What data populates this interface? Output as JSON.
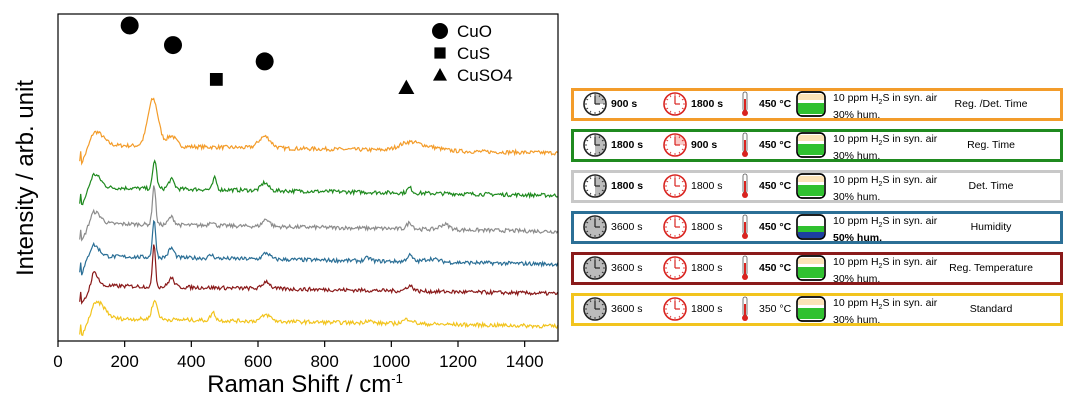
{
  "chart_data": {
    "type": "line",
    "xlabel": "Raman Shift / cm",
    "xlabel_sup": "-1",
    "ylabel": "Intensity / arb. unit",
    "xlim": [
      0,
      1500
    ],
    "xticks": [
      "0",
      "200",
      "400",
      "600",
      "800",
      "1000",
      "1200",
      "1400"
    ],
    "x_tick_values": [
      0,
      200,
      400,
      600,
      800,
      1000,
      1200,
      1400
    ],
    "yticks_shown": false,
    "series": [
      {
        "color": "#f39c2a",
        "start": 65,
        "offset": 0.6,
        "peaks": [
          [
            115,
            0.25,
            30
          ],
          [
            285,
            0.9,
            22
          ],
          [
            340,
            0.2,
            20
          ],
          [
            620,
            0.22,
            25
          ],
          [
            1050,
            0.12,
            40
          ],
          [
            1100,
            0.08,
            60
          ]
        ],
        "baseline": [
          0.55,
          0.25
        ]
      },
      {
        "color": "#1f8a1f",
        "start": 65,
        "offset": 0.47,
        "peaks": [
          [
            110,
            0.25,
            25
          ],
          [
            290,
            0.55,
            8
          ],
          [
            340,
            0.18,
            12
          ],
          [
            470,
            0.22,
            8
          ],
          [
            620,
            0.15,
            15
          ],
          [
            1055,
            0.1,
            10
          ]
        ],
        "baseline": [
          0.4,
          0.25
        ]
      },
      {
        "color": "#8c8c8c",
        "start": 65,
        "offset": 0.36,
        "peaks": [
          [
            110,
            0.22,
            25
          ],
          [
            288,
            0.75,
            7
          ],
          [
            340,
            0.15,
            12
          ],
          [
            460,
            0.08,
            10
          ],
          [
            625,
            0.14,
            15
          ],
          [
            1055,
            0.12,
            12
          ],
          [
            1160,
            0.1,
            20
          ]
        ],
        "baseline": [
          0.38,
          0.22
        ]
      },
      {
        "color": "#2b6f96",
        "start": 65,
        "offset": 0.26,
        "peaks": [
          [
            105,
            0.22,
            25
          ],
          [
            288,
            0.7,
            7
          ],
          [
            340,
            0.18,
            12
          ],
          [
            460,
            0.06,
            10
          ],
          [
            625,
            0.12,
            15
          ],
          [
            930,
            0.06,
            12
          ],
          [
            1055,
            0.12,
            12
          ],
          [
            1120,
            0.06,
            30
          ]
        ],
        "baseline": [
          0.38,
          0.2
        ]
      },
      {
        "color": "#8a1a1a",
        "start": 65,
        "offset": 0.17,
        "peaks": [
          [
            110,
            0.25,
            15
          ],
          [
            288,
            0.85,
            6
          ],
          [
            340,
            0.17,
            12
          ],
          [
            625,
            0.14,
            15
          ],
          [
            1055,
            0.1,
            15
          ]
        ],
        "baseline": [
          0.35,
          0.2
        ]
      },
      {
        "color": "#f2c41e",
        "start": 65,
        "offset": 0.07,
        "peaks": [
          [
            120,
            0.3,
            30
          ],
          [
            290,
            0.35,
            12
          ],
          [
            465,
            0.15,
            10
          ],
          [
            625,
            0.12,
            20
          ],
          [
            930,
            0.05,
            15
          ],
          [
            1050,
            0.09,
            20
          ]
        ],
        "baseline": [
          0.4,
          0.25
        ]
      }
    ],
    "markers": [
      {
        "shape": "circle",
        "x": 215,
        "y": 0.965
      },
      {
        "shape": "circle",
        "x": 345,
        "y": 0.905
      },
      {
        "shape": "square",
        "x": 475,
        "y": 0.8
      },
      {
        "shape": "circle",
        "x": 620,
        "y": 0.855
      },
      {
        "shape": "triangle",
        "x": 1045,
        "y": 0.775
      }
    ],
    "legend": [
      {
        "shape": "circle",
        "label": "CuO"
      },
      {
        "shape": "square",
        "label": "CuS"
      },
      {
        "shape": "triangle",
        "label": "CuSO4"
      }
    ]
  },
  "conditions": [
    {
      "border": "#f39c2a",
      "t1": "900 s",
      "t1_bold": true,
      "t1_fill": 0.25,
      "t2": "1800 s",
      "t2_bold": true,
      "t2_fill": 0,
      "temp": "450 °C",
      "temp_bold": true,
      "gas_pre": "10 ppm H",
      "gas_sub": "2",
      "gas_post": "S in syn. air",
      "hum": "30% hum.",
      "hum_bold": false,
      "gas_hum": "low",
      "label": "Reg. /Det. Time"
    },
    {
      "border": "#1f8a1f",
      "t1": "1800 s",
      "t1_bold": true,
      "t1_fill": 0.5,
      "t2": "900 s",
      "t2_bold": true,
      "t2_fill": 0.25,
      "temp": "450 °C",
      "temp_bold": true,
      "gas_pre": "10 ppm H",
      "gas_sub": "2",
      "gas_post": "S in syn. air",
      "hum": "30% hum.",
      "hum_bold": false,
      "gas_hum": "low",
      "label": "Reg. Time"
    },
    {
      "border": "#c8c8c8",
      "t1": "1800 s",
      "t1_bold": true,
      "t1_fill": 0.5,
      "t2": "1800 s",
      "t2_bold": false,
      "t2_fill": 0,
      "temp": "450 °C",
      "temp_bold": true,
      "gas_pre": "10 ppm H",
      "gas_sub": "2",
      "gas_post": "S in syn. air",
      "hum": "30% hum.",
      "hum_bold": false,
      "gas_hum": "low",
      "label": "Det. Time"
    },
    {
      "border": "#2b6f96",
      "t1": "3600 s",
      "t1_bold": false,
      "t1_fill": 1,
      "t2": "1800 s",
      "t2_bold": false,
      "t2_fill": 0,
      "temp": "450 °C",
      "temp_bold": true,
      "gas_pre": "10 ppm H",
      "gas_sub": "2",
      "gas_post": "S in syn. air",
      "hum": "50% hum.",
      "hum_bold": true,
      "gas_hum": "high",
      "label": "Humidity"
    },
    {
      "border": "#8a1a1a",
      "t1": "3600 s",
      "t1_bold": false,
      "t1_fill": 1,
      "t2": "1800 s",
      "t2_bold": false,
      "t2_fill": 0,
      "temp": "450 °C",
      "temp_bold": true,
      "gas_pre": "10 ppm H",
      "gas_sub": "2",
      "gas_post": "S in syn. air",
      "hum": "30% hum.",
      "hum_bold": false,
      "gas_hum": "low",
      "label": "Reg. Temperature"
    },
    {
      "border": "#f2c41e",
      "t1": "3600 s",
      "t1_bold": false,
      "t1_fill": 1,
      "t2": "1800 s",
      "t2_bold": false,
      "t2_fill": 0,
      "temp": "350 °C",
      "temp_bold": false,
      "gas_pre": "10 ppm H",
      "gas_sub": "2",
      "gas_post": "S in syn. air",
      "hum": "30% hum.",
      "hum_bold": false,
      "gas_hum": "low",
      "label": "Standard"
    }
  ]
}
